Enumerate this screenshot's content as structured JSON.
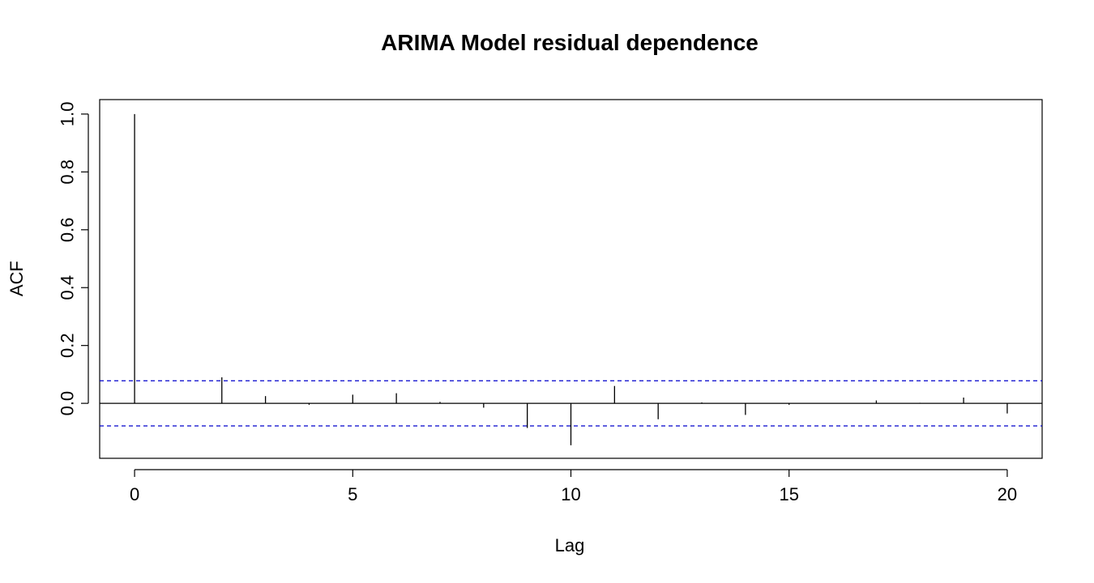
{
  "chart_data": {
    "type": "bar",
    "title": "ARIMA Model residual dependence",
    "xlabel": "Lag",
    "ylabel": "ACF",
    "xlim": [
      -0.8,
      20.8
    ],
    "ylim": [
      -0.19,
      1.05
    ],
    "xticks": [
      0,
      5,
      10,
      15,
      20
    ],
    "yticks": [
      0.0,
      0.2,
      0.4,
      0.6,
      0.8,
      1.0
    ],
    "ytick_labels": [
      "0.0",
      "0.2",
      "0.4",
      "0.6",
      "0.8",
      "1.0"
    ],
    "lags": [
      0,
      1,
      2,
      3,
      4,
      5,
      6,
      7,
      8,
      9,
      10,
      11,
      12,
      13,
      14,
      15,
      16,
      17,
      18,
      19,
      20
    ],
    "acf": [
      1.0,
      0.0,
      0.09,
      0.025,
      -0.005,
      0.03,
      0.035,
      0.005,
      -0.015,
      -0.085,
      -0.145,
      0.06,
      -0.055,
      0.003,
      -0.04,
      -0.005,
      0.0,
      0.01,
      0.002,
      0.02,
      -0.035
    ],
    "confidence_bound": 0.078,
    "grid": false,
    "colors": {
      "bars": "#000000",
      "confidence": "#0000cc",
      "frame": "#000000"
    }
  }
}
